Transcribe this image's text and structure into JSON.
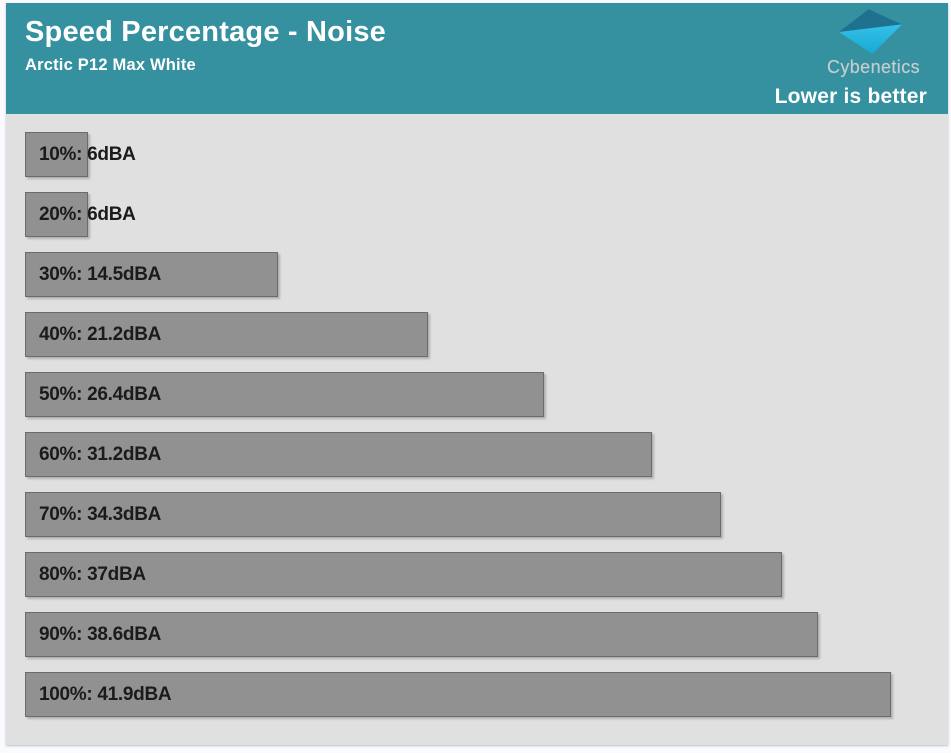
{
  "header": {
    "title": "Speed Percentage - Noise",
    "subtitle": "Arctic P12 Max White",
    "brand": "Cybenetics",
    "note": "Lower is better",
    "bg_color": "#35909F",
    "text_color": "#FFFFFF",
    "brand_text_color": "#C9CDCE",
    "logo_colors": {
      "top": "#1E7290",
      "bottom_start": "#45CDF2",
      "bottom_end": "#17A9D4"
    }
  },
  "chart_data": {
    "type": "bar",
    "orientation": "horizontal",
    "title": "Speed Percentage - Noise",
    "subtitle": "Arctic P12 Max White",
    "annotation": "Lower is better",
    "unit": "dBA",
    "categories": [
      "10%",
      "20%",
      "30%",
      "40%",
      "50%",
      "60%",
      "70%",
      "80%",
      "90%",
      "100%"
    ],
    "values": [
      6,
      6,
      14.5,
      21.2,
      26.4,
      31.2,
      34.3,
      37,
      38.6,
      41.9
    ],
    "labels": [
      "10%: 6dBA",
      "20%: 6dBA",
      "30%: 14.5dBA",
      "40%: 21.2dBA",
      "50%: 26.4dBA",
      "60%: 31.2dBA",
      "70%: 34.3dBA",
      "80%: 37dBA",
      "90%: 38.6dBA",
      "100%: 41.9dBA"
    ],
    "xlim": [
      3.2,
      43.4
    ],
    "grid": false,
    "legend": "none",
    "plot_bg": "#E0E0E0",
    "bar_color": "#919191",
    "bar_border_color": "#6B6B6B",
    "label_color": "#1B1B1B"
  }
}
